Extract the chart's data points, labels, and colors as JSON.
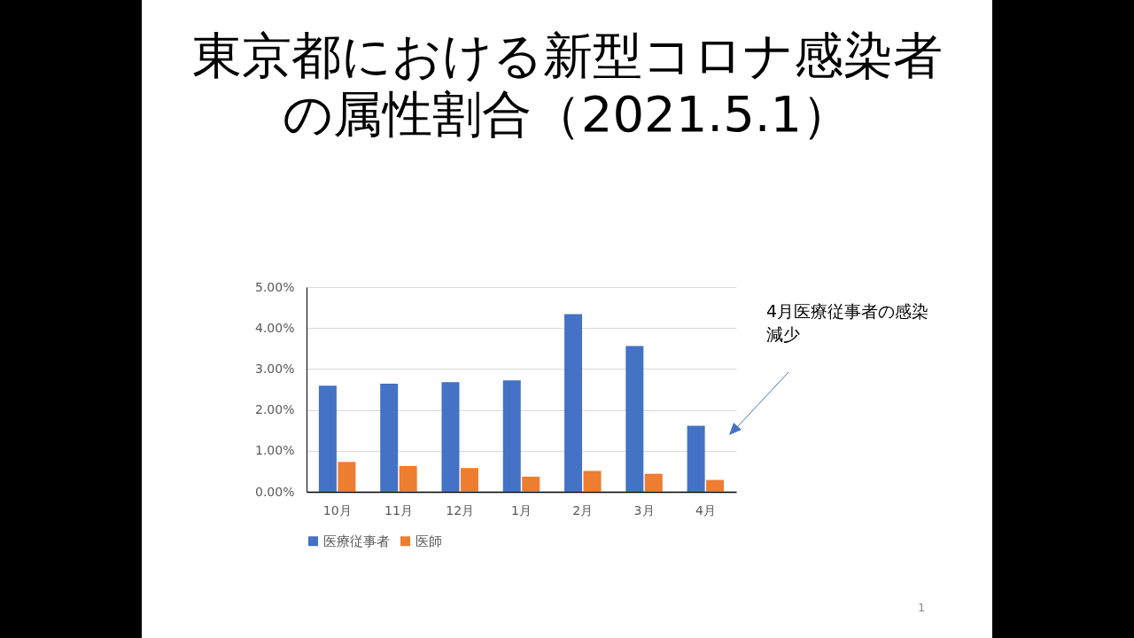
{
  "chart_data": {
    "type": "bar",
    "title": "東京都における新型コロナ感染者の属性割合（2021.5.1）",
    "categories": [
      "10月",
      "11月",
      "12月",
      "1月",
      "2月",
      "3月",
      "4月"
    ],
    "series": [
      {
        "name": "医療従事者",
        "color": "#4472c4",
        "values": [
          2.59,
          2.64,
          2.68,
          2.72,
          4.34,
          3.56,
          1.61
        ]
      },
      {
        "name": "医師",
        "color": "#ed7d31",
        "values": [
          0.73,
          0.63,
          0.58,
          0.37,
          0.51,
          0.44,
          0.29
        ]
      }
    ],
    "ylim": [
      0,
      5
    ],
    "yticks": [
      {
        "value": 0,
        "label": "0.00%"
      },
      {
        "value": 1,
        "label": "1.00%"
      },
      {
        "value": 2,
        "label": "2.00%"
      },
      {
        "value": 3,
        "label": "3.00%"
      },
      {
        "value": 4,
        "label": "4.00%"
      },
      {
        "value": 5,
        "label": "5.00%"
      }
    ],
    "grid": "y",
    "legend": "bottom",
    "annotations": [
      "4月医療従事者の感染減少",
      "1"
    ]
  }
}
